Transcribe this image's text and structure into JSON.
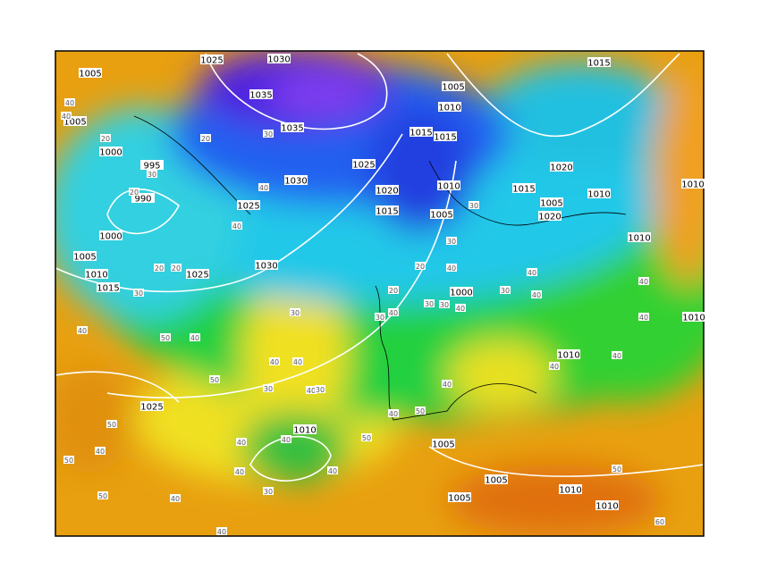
{
  "isobar_labels": [
    "1025",
    "1030",
    "1005",
    "1005",
    "1035",
    "1035",
    "1000",
    "995",
    "990",
    "1025",
    "1030",
    "1025",
    "1020",
    "1015",
    "1005",
    "1010",
    "1015",
    "1015",
    "1015",
    "1020",
    "1010",
    "1015",
    "1005",
    "1005",
    "1020",
    "1010",
    "1010",
    "1000",
    "1005",
    "1010",
    "1015",
    "1025",
    "1030",
    "1000",
    "1010",
    "1010",
    "1010",
    "1025",
    "1010",
    "1005",
    "1005",
    "1010",
    "1005",
    "1010"
  ],
  "thickness_labels": [
    "40",
    "40",
    "20",
    "30",
    "20",
    "20",
    "30",
    "40",
    "40",
    "30",
    "20",
    "20",
    "30",
    "20",
    "40",
    "30",
    "20",
    "30",
    "30",
    "40",
    "40",
    "30",
    "30",
    "40",
    "40",
    "30",
    "40",
    "40",
    "50",
    "40",
    "40",
    "30",
    "40",
    "40",
    "50",
    "40",
    "40",
    "40",
    "50",
    "40",
    "50",
    "50",
    "40",
    "40",
    "40",
    "50",
    "40",
    "50",
    "40",
    "60",
    "50",
    "40",
    "30",
    "30",
    "40",
    "40"
  ]
}
